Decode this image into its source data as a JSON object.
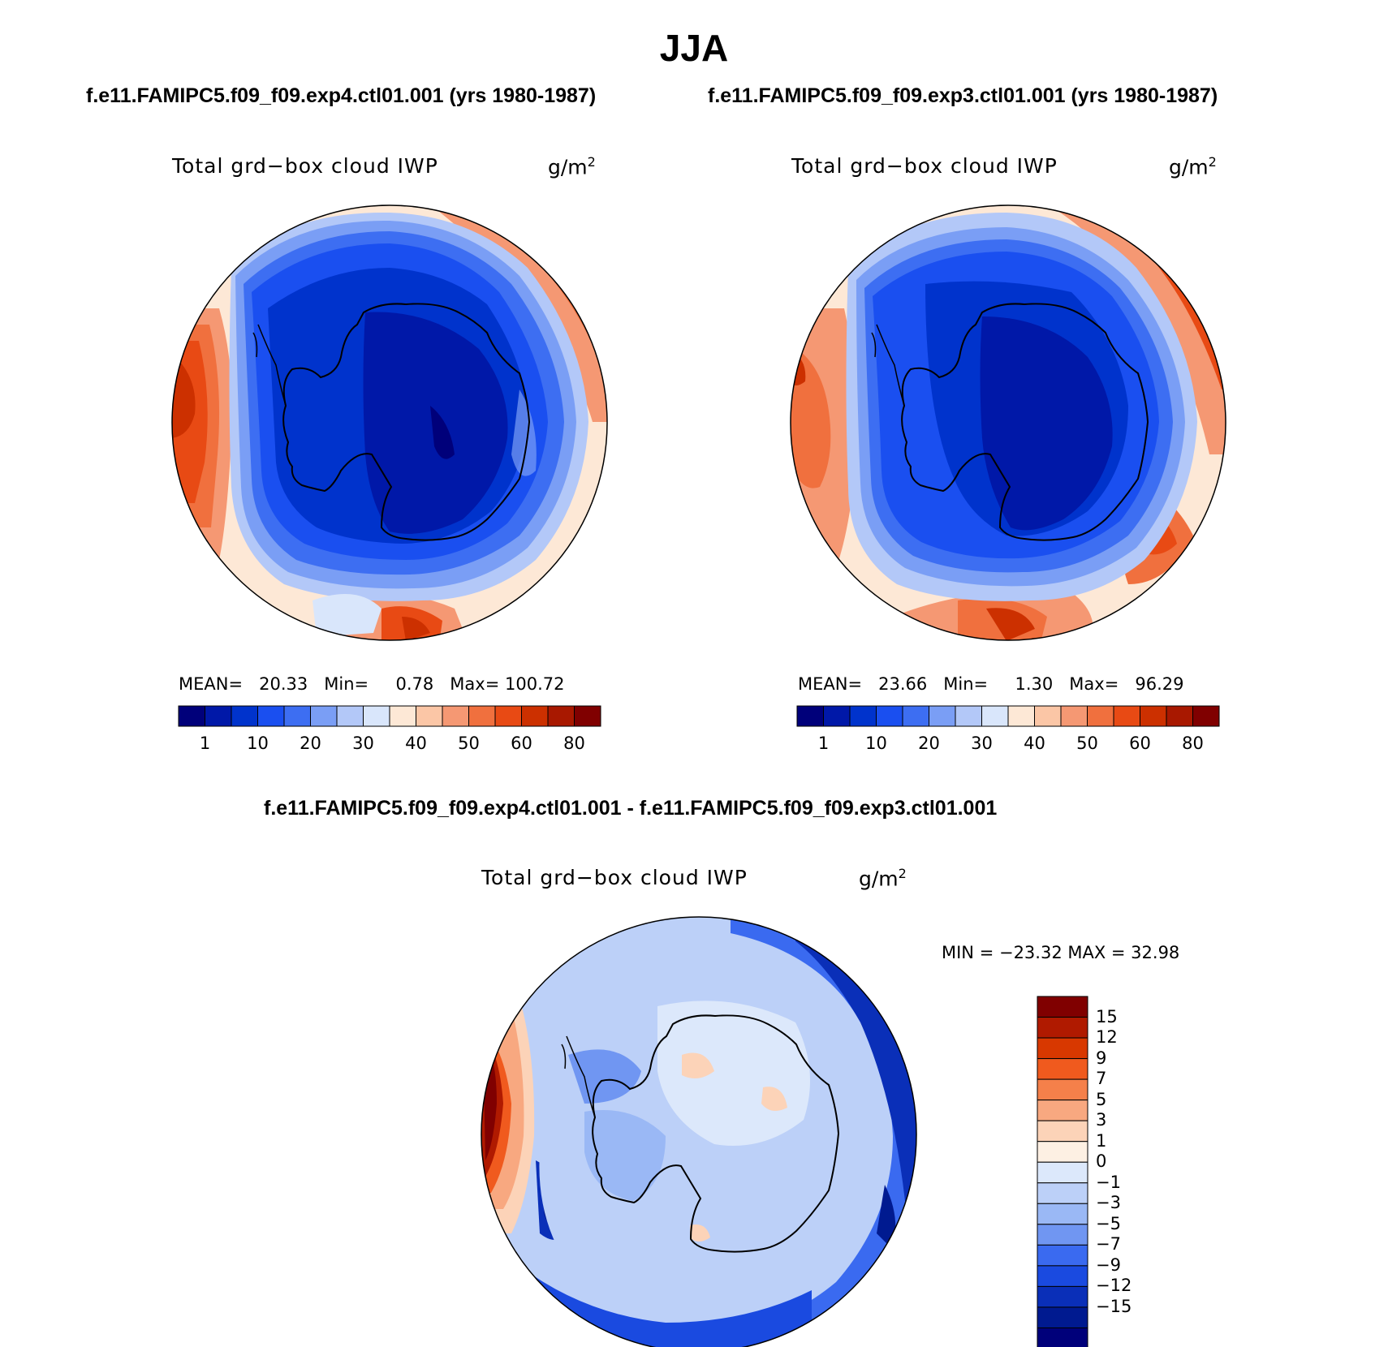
{
  "figure": {
    "season": "JJA",
    "left_run": "f.e11.FAMIPC5.f09_f09.exp4.ctl01.001 (yrs 1980-1987)",
    "right_run": "f.e11.FAMIPC5.f09_f09.exp3.ctl01.001 (yrs 1980-1987)",
    "diff_title": "f.e11.FAMIPC5.f09_f09.exp4.ctl01.001 - f.e11.FAMIPC5.f09_f09.exp3.ctl01.001"
  },
  "panels": [
    {
      "field": "Total grd−box cloud IWP",
      "units": "g/m",
      "units_exp": "2",
      "stats": {
        "mean_label": "MEAN=",
        "mean": "20.33",
        "min_label": "Min=",
        "min": "0.78",
        "max_label": "Max=",
        "max": "100.72"
      }
    },
    {
      "field": "Total grd−box cloud IWP",
      "units": "g/m",
      "units_exp": "2",
      "stats": {
        "mean_label": "MEAN=",
        "mean": "23.66",
        "min_label": "Min=",
        "min": "1.30",
        "max_label": "Max=",
        "max": "96.29"
      }
    },
    {
      "field": "Total grd−box cloud IWP",
      "units": "g/m",
      "units_exp": "2",
      "stats": {
        "text": "MIN = −23.32  MAX =  32.98"
      }
    }
  ],
  "colorbar_horizontal": {
    "colors": [
      "#00007a",
      "#0018a8",
      "#0033cc",
      "#1a4ff0",
      "#3d6ef2",
      "#7a9ef5",
      "#b3c8f8",
      "#d9e6fb",
      "#fde8d6",
      "#fbc6a6",
      "#f59873",
      "#f0703e",
      "#e84a14",
      "#cc3000",
      "#a81800",
      "#800000"
    ],
    "ticks": [
      "1",
      "10",
      "20",
      "30",
      "40",
      "50",
      "60",
      "80"
    ]
  },
  "colorbar_vertical": {
    "colors": [
      "#800000",
      "#b01a00",
      "#d83800",
      "#f05a1e",
      "#f5804a",
      "#f8a880",
      "#fcd3b8",
      "#fdf0e3",
      "#dce8fb",
      "#bcd0f8",
      "#9ab8f5",
      "#7096f2",
      "#3a6af0",
      "#1a4ae0",
      "#0a2fb8",
      "#001a90",
      "#00007a"
    ],
    "ticks": [
      "15",
      "12",
      "9",
      "7",
      "5",
      "3",
      "1",
      "0",
      "−1",
      "−3",
      "−5",
      "−7",
      "−9",
      "−12",
      "−15"
    ]
  }
}
